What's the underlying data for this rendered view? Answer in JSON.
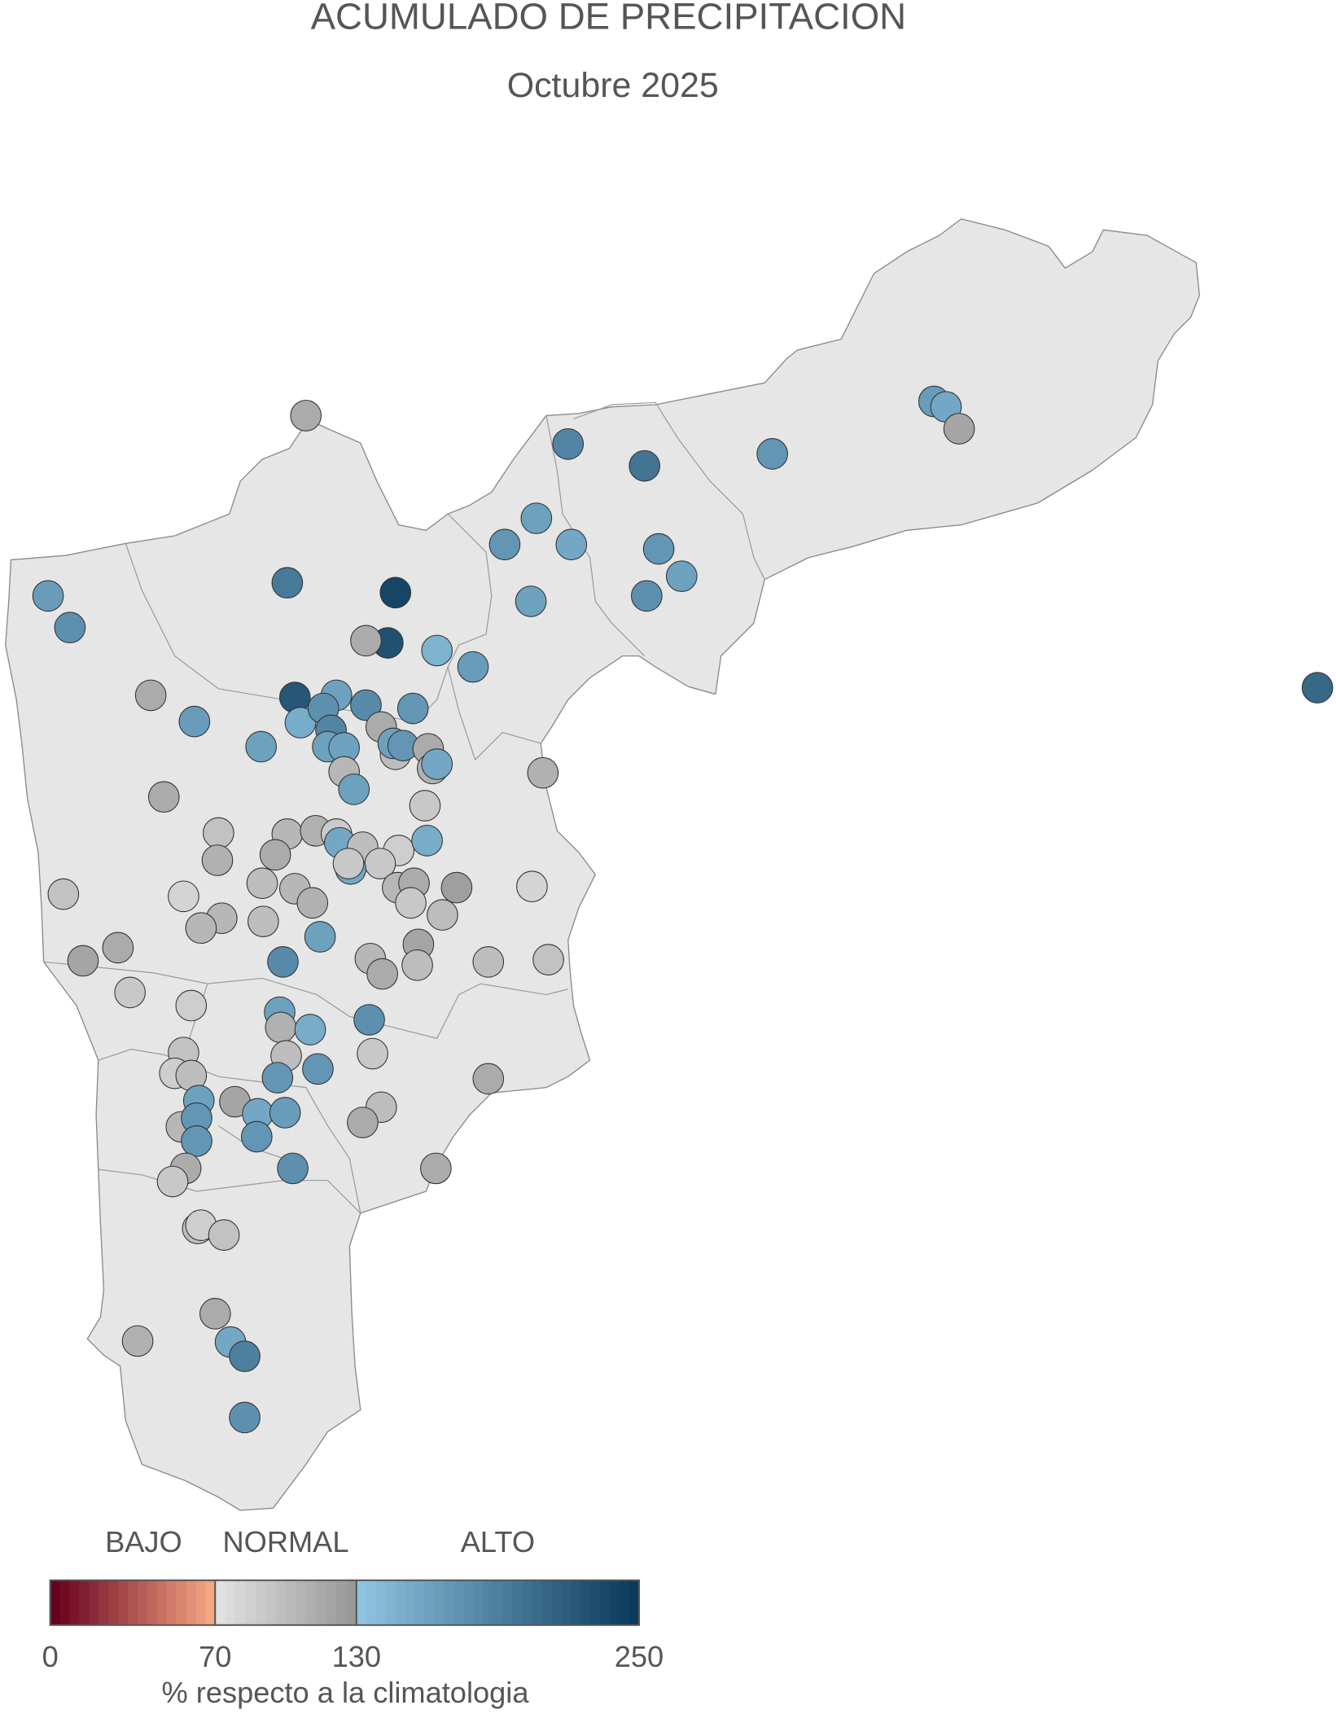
{
  "chart_data": {
    "type": "map",
    "title": "ACUMULADO DE PRECIPITACION",
    "subtitle": "Octubre 2025",
    "values": [
      115,
      185,
      200,
      170,
      165,
      155,
      120,
      170,
      160,
      155,
      170,
      160,
      175,
      160,
      165,
      175,
      195,
      240,
      230,
      115,
      145,
      165,
      115,
      165,
      225,
      160,
      150,
      175,
      185,
      180,
      170,
      115,
      160,
      160,
      100,
      160,
      170,
      115,
      110,
      155,
      160,
      105,
      160,
      110,
      115,
      90,
      95,
      105,
      110,
      88,
      155,
      100,
      115,
      85,
      150,
      110,
      90,
      155,
      90,
      95,
      80,
      100,
      105,
      110,
      105,
      115,
      125,
      90,
      80,
      105,
      100,
      105,
      160,
      100,
      120,
      105,
      115,
      100,
      100,
      95,
      115,
      120,
      180,
      90,
      85,
      160,
      110,
      150,
      175,
      95,
      100,
      90,
      170,
      85,
      100,
      170,
      115,
      160,
      120,
      155,
      165,
      105,
      170,
      100,
      115,
      170,
      170,
      115,
      175,
      90,
      115,
      100,
      85,
      95,
      115,
      110,
      155,
      190,
      175,
      210
    ],
    "colorbar": {
      "labels": [
        "BAJO",
        "NORMAL",
        "ALTO"
      ],
      "label": "% respecto a la climatologia",
      "lim": [
        0,
        250
      ],
      "ticks": [
        0,
        70,
        130,
        250
      ],
      "colors": [
        "#67001f",
        "#f4a582",
        "#e0e0e0",
        "#999999",
        "#8ec4e0",
        "#0b3a5c"
      ]
    }
  }
}
